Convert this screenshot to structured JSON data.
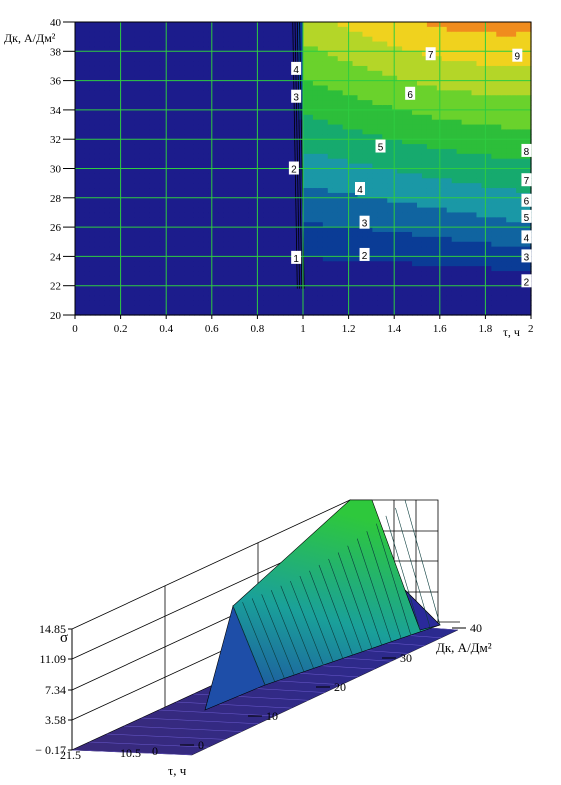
{
  "chart_data": [
    {
      "type": "contour",
      "xlabel": "τ, ч",
      "ylabel": "Дк, А/Дм²",
      "xlim": [
        0,
        2
      ],
      "ylim": [
        20,
        40
      ],
      "x_ticks": [
        "0",
        "0.2",
        "0.4",
        "0.6",
        "0.8",
        "1",
        "1.2",
        "1.4",
        "1.6",
        "1.8",
        "2"
      ],
      "y_ticks": [
        "20",
        "22",
        "24",
        "26",
        "28",
        "30",
        "32",
        "34",
        "36",
        "38",
        "40"
      ],
      "grid": true,
      "color_scale": [
        "#1c1c8c",
        "#0a3c96",
        "#1064a0",
        "#1a98a6",
        "#16aa6e",
        "#2dbe3a",
        "#6ad22c",
        "#b4d628",
        "#f0d21e",
        "#f08c1e",
        "#f01414"
      ],
      "contour_labels": [
        {
          "x": 0.97,
          "y": 23.9,
          "label": "1"
        },
        {
          "x": 0.96,
          "y": 30.0,
          "label": "2"
        },
        {
          "x": 0.97,
          "y": 34.9,
          "label": "3"
        },
        {
          "x": 0.97,
          "y": 36.8,
          "label": "4"
        },
        {
          "x": 1.27,
          "y": 24.1,
          "label": "2"
        },
        {
          "x": 1.27,
          "y": 26.3,
          "label": "3"
        },
        {
          "x": 1.25,
          "y": 28.6,
          "label": "4"
        },
        {
          "x": 1.34,
          "y": 31.5,
          "label": "5"
        },
        {
          "x": 1.47,
          "y": 35.1,
          "label": "6"
        },
        {
          "x": 1.56,
          "y": 37.8,
          "label": "7"
        },
        {
          "x": 1.94,
          "y": 37.7,
          "label": "9"
        },
        {
          "x": 1.98,
          "y": 22.3,
          "label": "2"
        },
        {
          "x": 1.98,
          "y": 24.0,
          "label": "3"
        },
        {
          "x": 1.98,
          "y": 25.3,
          "label": "4"
        },
        {
          "x": 1.98,
          "y": 26.7,
          "label": "5"
        },
        {
          "x": 1.98,
          "y": 27.8,
          "label": "6"
        },
        {
          "x": 1.98,
          "y": 29.2,
          "label": "7"
        },
        {
          "x": 1.98,
          "y": 31.2,
          "label": "8"
        }
      ]
    },
    {
      "type": "surface3d",
      "zlabel": "σ",
      "xlabel": "τ, ч",
      "ylabel": "Дк, А/Дм²",
      "z_ticks": [
        "14.85",
        "11.09",
        "7.34",
        "3.58",
        "− 0.17"
      ],
      "x_ticks": [
        "21.5",
        "10.5",
        "0"
      ],
      "y_ticks": [
        "0",
        "10",
        "20",
        "30",
        "40"
      ]
    }
  ]
}
